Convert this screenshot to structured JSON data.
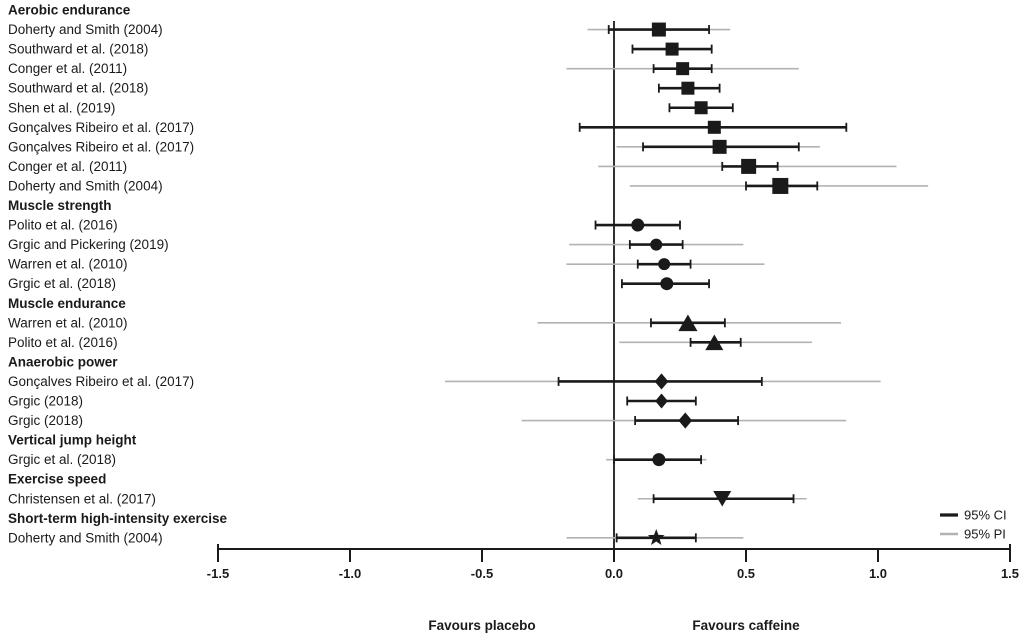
{
  "figure": {
    "legend": {
      "ci_label": "95% CI",
      "pi_label": "95% PI"
    },
    "colors": {
      "ci": "#1a1a1a",
      "pi": "#b2b2b2",
      "axis": "#1a1a1a"
    }
  },
  "chart_data": {
    "type": "forest",
    "title": "",
    "xlabel_left": "Favours placebo",
    "xlabel_right": "Favours caffeine",
    "xlim": [
      -1.5,
      1.5
    ],
    "ticks": [
      -1.5,
      -1.0,
      -0.5,
      0.0,
      0.5,
      1.0,
      1.5
    ],
    "tick_labels": [
      "-1.5",
      "-1.0",
      "-0.5",
      "0.0",
      "0.5",
      "1.0",
      "1.5"
    ],
    "legend": [
      {
        "label": "95% CI",
        "color": "#1a1a1a"
      },
      {
        "label": "95% PI",
        "color": "#b2b2b2"
      }
    ],
    "rows": [
      {
        "kind": "category",
        "label": "Aerobic endurance"
      },
      {
        "kind": "study",
        "label": "Doherty and Smith (2004)",
        "marker": "square",
        "estimate": 0.17,
        "ci": [
          -0.02,
          0.36
        ],
        "pi": [
          -0.1,
          0.44
        ],
        "size": 14
      },
      {
        "kind": "study",
        "label": "Southward et al. (2018)",
        "marker": "square",
        "estimate": 0.22,
        "ci": [
          0.07,
          0.37
        ],
        "pi": null,
        "size": 13
      },
      {
        "kind": "study",
        "label": "Conger et al. (2011)",
        "marker": "square",
        "estimate": 0.26,
        "ci": [
          0.15,
          0.37
        ],
        "pi": [
          -0.18,
          0.7
        ],
        "size": 13
      },
      {
        "kind": "study",
        "label": "Southward et al. (2018)",
        "marker": "square",
        "estimate": 0.28,
        "ci": [
          0.17,
          0.4
        ],
        "pi": null,
        "size": 13
      },
      {
        "kind": "study",
        "label": "Shen et al. (2019)",
        "marker": "square",
        "estimate": 0.33,
        "ci": [
          0.21,
          0.45
        ],
        "pi": null,
        "size": 13
      },
      {
        "kind": "study",
        "label": "Gonçalves Ribeiro et al. (2017)",
        "marker": "square",
        "estimate": 0.38,
        "ci": [
          -0.13,
          0.88
        ],
        "pi": null,
        "size": 13
      },
      {
        "kind": "study",
        "label": "Gonçalves Ribeiro et al. (2017)",
        "marker": "square",
        "estimate": 0.4,
        "ci": [
          0.11,
          0.7
        ],
        "pi": [
          0.01,
          0.78
        ],
        "size": 14
      },
      {
        "kind": "study",
        "label": "Conger et al. (2011)",
        "marker": "square",
        "estimate": 0.51,
        "ci": [
          0.41,
          0.62
        ],
        "pi": [
          -0.06,
          1.07
        ],
        "size": 15
      },
      {
        "kind": "study",
        "label": "Doherty and Smith (2004)",
        "marker": "square",
        "estimate": 0.63,
        "ci": [
          0.5,
          0.77
        ],
        "pi": [
          0.06,
          1.19
        ],
        "size": 16
      },
      {
        "kind": "category",
        "label": "Muscle strength"
      },
      {
        "kind": "study",
        "label": "Polito et al. (2016)",
        "marker": "circle",
        "estimate": 0.09,
        "ci": [
          -0.07,
          0.25
        ],
        "pi": null,
        "size": 13
      },
      {
        "kind": "study",
        "label": "Grgic and Pickering (2019)",
        "marker": "circle",
        "estimate": 0.16,
        "ci": [
          0.06,
          0.26
        ],
        "pi": [
          -0.17,
          0.49
        ],
        "size": 12
      },
      {
        "kind": "study",
        "label": "Warren et al. (2010)",
        "marker": "circle",
        "estimate": 0.19,
        "ci": [
          0.09,
          0.29
        ],
        "pi": [
          -0.18,
          0.57
        ],
        "size": 12
      },
      {
        "kind": "study",
        "label": "Grgic et al. (2018)",
        "marker": "circle",
        "estimate": 0.2,
        "ci": [
          0.03,
          0.36
        ],
        "pi": null,
        "size": 13
      },
      {
        "kind": "category",
        "label": "Muscle endurance"
      },
      {
        "kind": "study",
        "label": "Warren et al. (2010)",
        "marker": "triangle-up",
        "estimate": 0.28,
        "ci": [
          0.14,
          0.42
        ],
        "pi": [
          -0.29,
          0.86
        ],
        "size": 16
      },
      {
        "kind": "study",
        "label": "Polito et al. (2016)",
        "marker": "triangle-up",
        "estimate": 0.38,
        "ci": [
          0.29,
          0.48
        ],
        "pi": [
          0.02,
          0.75
        ],
        "size": 15
      },
      {
        "kind": "category",
        "label": "Anaerobic power"
      },
      {
        "kind": "study",
        "label": "Gonçalves Ribeiro et al. (2017)",
        "marker": "diamond",
        "estimate": 0.18,
        "ci": [
          -0.21,
          0.56
        ],
        "pi": [
          -0.64,
          1.01
        ],
        "size": 13
      },
      {
        "kind": "study",
        "label": "Grgic (2018)",
        "marker": "diamond",
        "estimate": 0.18,
        "ci": [
          0.05,
          0.31
        ],
        "pi": null,
        "size": 12
      },
      {
        "kind": "study",
        "label": "Grgic (2018)",
        "marker": "diamond",
        "estimate": 0.27,
        "ci": [
          0.08,
          0.47
        ],
        "pi": [
          -0.35,
          0.88
        ],
        "size": 13
      },
      {
        "kind": "category",
        "label": "Vertical jump height"
      },
      {
        "kind": "study",
        "label": "Grgic et al. (2018)",
        "marker": "circle",
        "estimate": 0.17,
        "ci": [
          0.0,
          0.33
        ],
        "pi": [
          -0.03,
          0.35
        ],
        "size": 13
      },
      {
        "kind": "category",
        "label": "Exercise speed"
      },
      {
        "kind": "study",
        "label": "Christensen et al. (2017)",
        "marker": "triangle-down",
        "estimate": 0.41,
        "ci": [
          0.15,
          0.68
        ],
        "pi": [
          0.09,
          0.73
        ],
        "size": 15
      },
      {
        "kind": "category",
        "label": "Short-term high-intensity exercise"
      },
      {
        "kind": "study",
        "label": "Doherty and Smith (2004)",
        "marker": "star",
        "estimate": 0.16,
        "ci": [
          0.01,
          0.31
        ],
        "pi": [
          -0.18,
          0.49
        ],
        "size": 16
      }
    ]
  }
}
